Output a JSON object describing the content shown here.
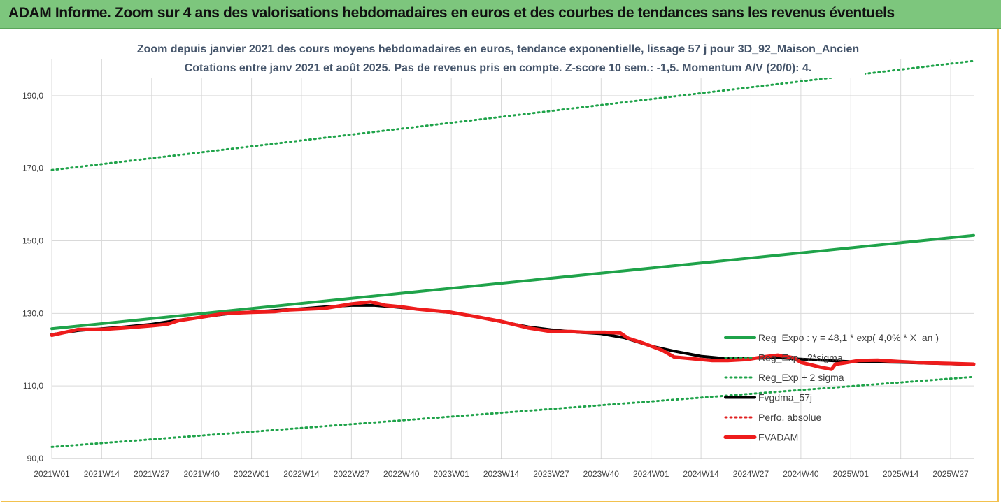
{
  "header": {
    "title": "ADAM Informe. Zoom sur 4 ans des valorisations hebdomadaires en euros et des courbes de tendances sans les revenus éventuels"
  },
  "chart_data": {
    "type": "line",
    "title_line1": "Zoom depuis janvier 2021 des cours moyens hebdomadaires en euros, tendance exponentielle, lissage 57 j pour 3D_92_Maison_Ancien",
    "title_line2": "Cotations entre janv 2021 et août 2025.  Pas de revenus pris en compte.  Z-score 10 sem.: -1,5.  Momentum A/V (20/0): 4.",
    "ylim": [
      90,
      200
    ],
    "yticks": [
      90,
      110,
      130,
      150,
      170,
      190
    ],
    "ytick_labels": [
      "90,0",
      "110,0",
      "130,0",
      "150,0",
      "170,0",
      "190,0"
    ],
    "xlim": [
      1,
      241
    ],
    "xticks": [
      1,
      14,
      27,
      40,
      53,
      66,
      79,
      92,
      105,
      118,
      131,
      144,
      157,
      170,
      183,
      196,
      209,
      222,
      235
    ],
    "xtick_labels": [
      "2021W01",
      "2021W14",
      "2021W27",
      "2021W40",
      "2022W01",
      "2022W14",
      "2022W27",
      "2022W40",
      "2023W01",
      "2023W14",
      "2023W27",
      "2023W40",
      "2024W01",
      "2024W14",
      "2024W27",
      "2024W40",
      "2025W01",
      "2025W14",
      "2025W27"
    ],
    "grid": true,
    "legend_position": "right",
    "series": [
      {
        "name": "Reg_Expo : y = 48,1 * exp( 4,0% *  X_an )",
        "color": "#1fa34a",
        "style": "solid",
        "width": 4,
        "x": [
          1,
          241
        ],
        "y": [
          125.8,
          151.5
        ]
      },
      {
        "name": "Reg_Exp - 2*sigma",
        "color": "#1fa34a",
        "style": "dotted",
        "width": 3,
        "x": [
          1,
          241
        ],
        "y": [
          93.2,
          112.5
        ]
      },
      {
        "name": "Reg_Exp + 2 sigma",
        "color": "#1fa34a",
        "style": "dotted",
        "width": 3,
        "x": [
          1,
          241
        ],
        "y": [
          169.5,
          199.6
        ]
      },
      {
        "name": "Fvgdma_57j",
        "color": "#000000",
        "style": "solid",
        "width": 4,
        "x": [
          1,
          8,
          14,
          20,
          27,
          33,
          40,
          46,
          53,
          60,
          66,
          72,
          79,
          85,
          90,
          96,
          105,
          112,
          118,
          125,
          131,
          138,
          144,
          150,
          157,
          163,
          170,
          176,
          183,
          190,
          196,
          203,
          209,
          216,
          222,
          228,
          235,
          241
        ],
        "y": [
          124.2,
          125.3,
          125.8,
          126.3,
          127.0,
          128.0,
          129.0,
          129.8,
          130.4,
          130.9,
          131.3,
          131.8,
          132.2,
          132.2,
          131.8,
          131.2,
          130.2,
          129.0,
          127.7,
          126.3,
          125.5,
          124.8,
          124.4,
          123.3,
          121.0,
          119.6,
          118.2,
          117.6,
          117.6,
          117.8,
          117.4,
          117.0,
          116.7,
          116.6,
          116.5,
          116.3,
          116.1,
          115.9
        ]
      },
      {
        "name": "Perfo. absolue",
        "color": "#e02020",
        "style": "dotted",
        "width": 3,
        "x": [],
        "y": []
      },
      {
        "name": "FVADAM",
        "color": "#ee1c1c",
        "style": "solid",
        "width": 5,
        "x": [
          1,
          8,
          14,
          20,
          27,
          31,
          34,
          40,
          46,
          53,
          59,
          63,
          72,
          79,
          84,
          88,
          92,
          96,
          105,
          112,
          118,
          125,
          131,
          136,
          140,
          145,
          149,
          151,
          155,
          157,
          160,
          163,
          168,
          173,
          177,
          182,
          186,
          190,
          194,
          196,
          201,
          204,
          205,
          207,
          211,
          216,
          222,
          228,
          235,
          241
        ],
        "y": [
          124.0,
          125.6,
          125.6,
          126.0,
          126.6,
          127.0,
          128.0,
          129.0,
          130.0,
          130.3,
          130.5,
          131.0,
          131.4,
          132.6,
          133.2,
          132.2,
          131.8,
          131.2,
          130.3,
          129.0,
          127.8,
          126.0,
          125.0,
          125.0,
          124.8,
          124.8,
          124.6,
          123.2,
          121.8,
          121.0,
          119.8,
          118.0,
          117.5,
          117.0,
          117.0,
          117.3,
          118.0,
          118.5,
          117.8,
          116.5,
          115.2,
          114.6,
          116.0,
          116.3,
          117.0,
          117.1,
          116.7,
          116.4,
          116.2,
          116.0
        ]
      }
    ]
  }
}
